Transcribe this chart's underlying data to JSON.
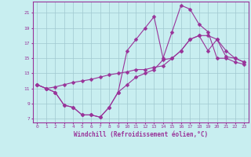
{
  "background_color": "#c8eef0",
  "grid_color": "#a0c8d0",
  "line_color": "#993399",
  "xlabel": "Windchill (Refroidissement éolien,°C)",
  "xlim": [
    -0.5,
    23.5
  ],
  "ylim": [
    6.5,
    22.5
  ],
  "yticks": [
    7,
    9,
    11,
    13,
    15,
    17,
    19,
    21
  ],
  "xticks": [
    0,
    1,
    2,
    3,
    4,
    5,
    6,
    7,
    8,
    9,
    10,
    11,
    12,
    13,
    14,
    15,
    16,
    17,
    18,
    19,
    20,
    21,
    22,
    23
  ],
  "line1_x": [
    0,
    1,
    2,
    3,
    4,
    5,
    6,
    7,
    8,
    9,
    10,
    11,
    12,
    13,
    14,
    15,
    16,
    17,
    18,
    19,
    20,
    21,
    22,
    23
  ],
  "line1_y": [
    11.5,
    11.0,
    10.5,
    8.8,
    8.5,
    7.5,
    7.5,
    7.2,
    8.5,
    10.5,
    16.0,
    17.5,
    19.0,
    20.5,
    15.0,
    18.5,
    22.0,
    21.5,
    19.5,
    18.5,
    15.0,
    15.0,
    14.5,
    14.2
  ],
  "line2_x": [
    0,
    1,
    2,
    3,
    4,
    5,
    6,
    7,
    8,
    9,
    10,
    11,
    12,
    13,
    14,
    15,
    16,
    17,
    18,
    19,
    20,
    21,
    22,
    23
  ],
  "line2_y": [
    11.5,
    11.0,
    11.2,
    11.5,
    11.8,
    12.0,
    12.2,
    12.5,
    12.8,
    13.0,
    13.2,
    13.5,
    13.5,
    13.8,
    14.0,
    15.0,
    16.0,
    17.5,
    18.0,
    18.0,
    17.5,
    16.0,
    15.0,
    14.5
  ],
  "line3_x": [
    0,
    1,
    2,
    3,
    4,
    5,
    6,
    7,
    8,
    9,
    10,
    11,
    12,
    13,
    14,
    15,
    16,
    17,
    18,
    19,
    20,
    21,
    22,
    23
  ],
  "line3_y": [
    11.5,
    11.0,
    10.5,
    8.8,
    8.5,
    7.5,
    7.5,
    7.2,
    8.5,
    10.5,
    11.5,
    12.5,
    13.0,
    13.5,
    14.8,
    15.0,
    16.0,
    17.5,
    18.0,
    16.0,
    17.5,
    15.2,
    15.0,
    14.5
  ]
}
